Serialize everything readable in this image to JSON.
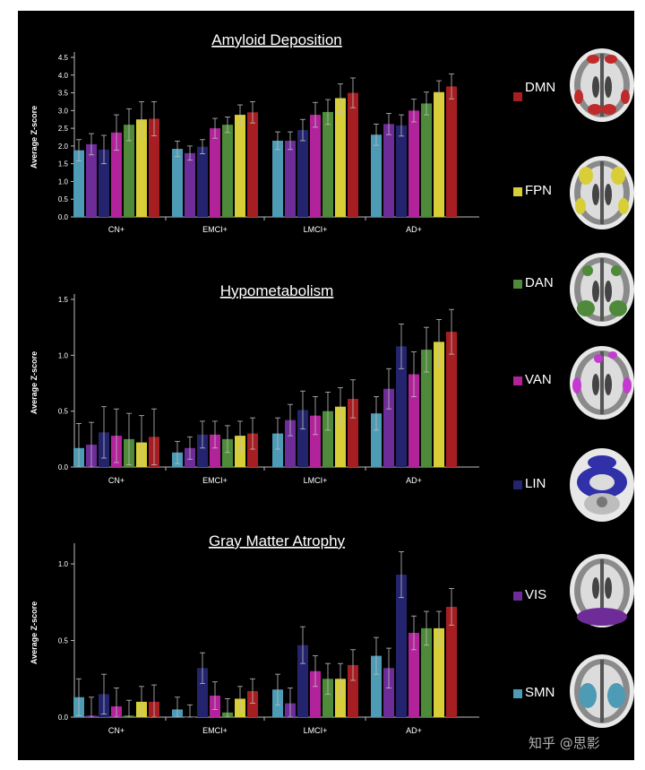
{
  "chart_data": [
    {
      "type": "bar",
      "title": "Amyloid Deposition",
      "ylabel": "Average Z-score",
      "xlabel": "",
      "ylim": [
        0,
        4.5
      ],
      "yticks": [
        "0.0",
        "0.5",
        "1.0",
        "1.5",
        "2.0",
        "2.5",
        "3.0",
        "3.5",
        "4.0",
        "4.5"
      ],
      "ytick_values": [
        0,
        0.5,
        1,
        1.5,
        2,
        2.5,
        3,
        3.5,
        4,
        4.5
      ],
      "categories": [
        "CN+",
        "EMCI+",
        "LMCI+",
        "AD+"
      ],
      "series": [
        {
          "name": "SMN",
          "values": [
            1.88,
            1.92,
            2.15,
            2.32
          ],
          "errors": [
            0.3,
            0.22,
            0.25,
            0.3
          ]
        },
        {
          "name": "VIS",
          "values": [
            2.05,
            1.8,
            2.15,
            2.62
          ],
          "errors": [
            0.3,
            0.2,
            0.25,
            0.3
          ]
        },
        {
          "name": "LIN",
          "values": [
            1.9,
            1.98,
            2.45,
            2.58
          ],
          "errors": [
            0.4,
            0.2,
            0.3,
            0.3
          ]
        },
        {
          "name": "VAN",
          "values": [
            2.38,
            2.5,
            2.88,
            3.0
          ],
          "errors": [
            0.5,
            0.28,
            0.35,
            0.32
          ]
        },
        {
          "name": "DAN",
          "values": [
            2.6,
            2.6,
            2.96,
            3.2
          ],
          "errors": [
            0.45,
            0.22,
            0.35,
            0.32
          ]
        },
        {
          "name": "FPN",
          "values": [
            2.75,
            2.88,
            3.35,
            3.52
          ],
          "errors": [
            0.5,
            0.28,
            0.4,
            0.32
          ]
        },
        {
          "name": "DMN",
          "values": [
            2.77,
            2.95,
            3.5,
            3.68
          ],
          "errors": [
            0.48,
            0.3,
            0.42,
            0.35
          ]
        }
      ]
    },
    {
      "type": "bar",
      "title": "Hypometabolism",
      "ylabel": "Average Z-score",
      "xlabel": "",
      "ylim": [
        0,
        1.5
      ],
      "yticks": [
        "0.0",
        "0.5",
        "1.0",
        "1.5"
      ],
      "ytick_values": [
        0,
        0.5,
        1,
        1.5
      ],
      "categories": [
        "CN+",
        "EMCI+",
        "LMCI+",
        "AD+"
      ],
      "series": [
        {
          "name": "SMN",
          "values": [
            0.17,
            0.13,
            0.3,
            0.48
          ],
          "errors": [
            0.22,
            0.1,
            0.14,
            0.15
          ]
        },
        {
          "name": "VIS",
          "values": [
            0.2,
            0.17,
            0.42,
            0.7
          ],
          "errors": [
            0.2,
            0.1,
            0.14,
            0.18
          ]
        },
        {
          "name": "LIN",
          "values": [
            0.31,
            0.29,
            0.51,
            1.08
          ],
          "errors": [
            0.23,
            0.12,
            0.17,
            0.2
          ]
        },
        {
          "name": "VAN",
          "values": [
            0.28,
            0.29,
            0.46,
            0.83
          ],
          "errors": [
            0.24,
            0.12,
            0.17,
            0.2
          ]
        },
        {
          "name": "DAN",
          "values": [
            0.25,
            0.25,
            0.5,
            1.05
          ],
          "errors": [
            0.23,
            0.12,
            0.17,
            0.2
          ]
        },
        {
          "name": "FPN",
          "values": [
            0.22,
            0.28,
            0.54,
            1.12
          ],
          "errors": [
            0.24,
            0.13,
            0.17,
            0.2
          ]
        },
        {
          "name": "DMN",
          "values": [
            0.27,
            0.3,
            0.61,
            1.21
          ],
          "errors": [
            0.25,
            0.14,
            0.17,
            0.2
          ]
        }
      ]
    },
    {
      "type": "bar",
      "title": "Gray Matter Atrophy",
      "ylabel": "Average Z-score",
      "xlabel": "",
      "ylim": [
        0,
        1.1
      ],
      "yticks": [
        "0.0",
        "0.5",
        "1.0"
      ],
      "ytick_values": [
        0,
        0.5,
        1
      ],
      "categories": [
        "CN+",
        "EMCI+",
        "LMCI+",
        "AD+"
      ],
      "series": [
        {
          "name": "SMN",
          "values": [
            0.13,
            0.05,
            0.18,
            0.4
          ],
          "errors": [
            0.12,
            0.08,
            0.1,
            0.12
          ]
        },
        {
          "name": "VIS",
          "values": [
            0.01,
            0.0,
            0.09,
            0.32
          ],
          "errors": [
            0.12,
            0.08,
            0.1,
            0.13
          ]
        },
        {
          "name": "LIN",
          "values": [
            0.15,
            0.32,
            0.47,
            0.93
          ],
          "errors": [
            0.13,
            0.1,
            0.12,
            0.15
          ]
        },
        {
          "name": "VAN",
          "values": [
            0.07,
            0.14,
            0.3,
            0.55
          ],
          "errors": [
            0.12,
            0.09,
            0.1,
            0.11
          ]
        },
        {
          "name": "DAN",
          "values": [
            0.01,
            0.03,
            0.25,
            0.58
          ],
          "errors": [
            0.1,
            0.09,
            0.1,
            0.11
          ]
        },
        {
          "name": "FPN",
          "values": [
            0.1,
            0.12,
            0.25,
            0.58
          ],
          "errors": [
            0.1,
            0.08,
            0.1,
            0.11
          ]
        },
        {
          "name": "DMN",
          "values": [
            0.1,
            0.17,
            0.34,
            0.72
          ],
          "errors": [
            0.11,
            0.08,
            0.1,
            0.12
          ]
        }
      ]
    }
  ],
  "legend": [
    {
      "name": "DMN",
      "color": "#a61e22"
    },
    {
      "name": "FPN",
      "color": "#d8cf38"
    },
    {
      "name": "DAN",
      "color": "#4e8a3a"
    },
    {
      "name": "VAN",
      "color": "#b2229b"
    },
    {
      "name": "LIN",
      "color": "#24246e"
    },
    {
      "name": "VIS",
      "color": "#6e2c98"
    },
    {
      "name": "SMN",
      "color": "#4d9bb5"
    }
  ],
  "watermark": "知乎 @思影"
}
